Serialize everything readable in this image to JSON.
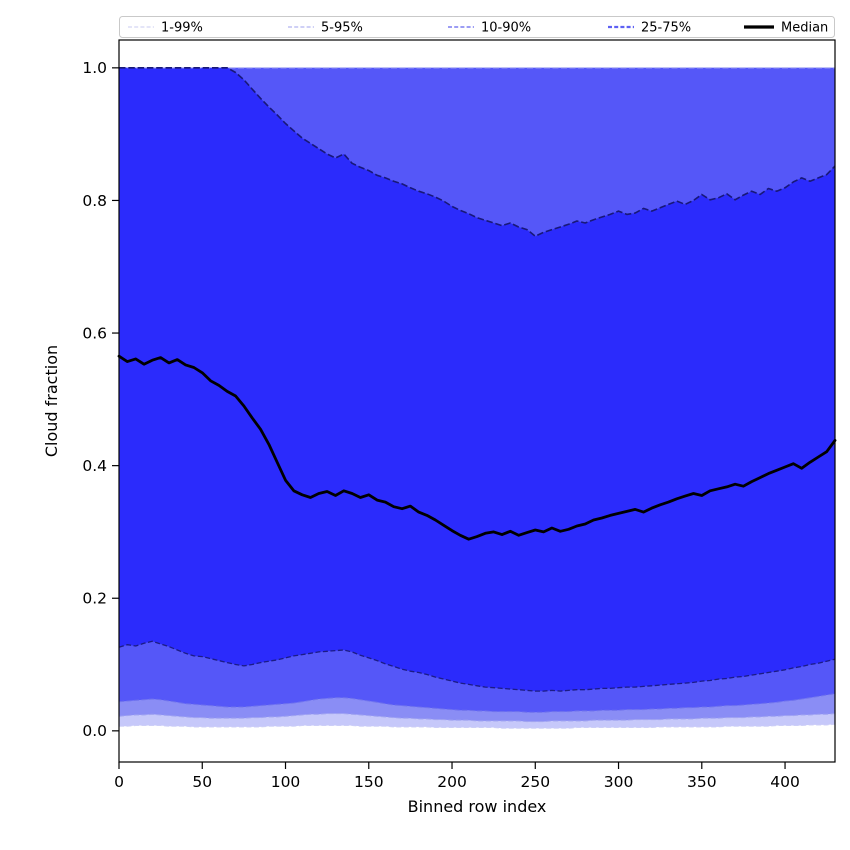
{
  "chart_data": {
    "type": "area",
    "title": "",
    "xlabel": "Binned row index",
    "ylabel": "Cloud fraction",
    "xlim": [
      0,
      430
    ],
    "ylim": [
      -0.047,
      1.042
    ],
    "x_ticks": [
      0,
      50,
      100,
      150,
      200,
      250,
      300,
      350,
      400
    ],
    "y_ticks": [
      0.0,
      0.2,
      0.4,
      0.6,
      0.8,
      1.0
    ],
    "y_tick_labels": [
      "0.0",
      "0.2",
      "0.4",
      "0.6",
      "0.8",
      "1.0"
    ],
    "grid": false,
    "x_start": 0,
    "x_step": 5,
    "top_edge_value": 1.0,
    "top_edge_color": "#a8abf2",
    "background_color": "#ffffff",
    "frame_color": "#000000",
    "legend": {
      "position": "top",
      "entries": [
        {
          "label": "1-99%",
          "color": "#c9cbf0",
          "lw": 1.1,
          "dashed": true
        },
        {
          "label": "5-95%",
          "color": "#9fa2ee",
          "lw": 1.1,
          "dashed": true
        },
        {
          "label": "10-90%",
          "color": "#7b7df0",
          "lw": 1.4,
          "dashed": true
        },
        {
          "label": "25-75%",
          "color": "#5e61f3",
          "lw": 2.2,
          "dashed": true
        },
        {
          "label": "Median",
          "color": "#000000",
          "lw": 3.2,
          "dashed": false
        }
      ]
    },
    "bands": [
      {
        "name": "1-99%",
        "fill": "#c6c8fa",
        "edge": "#caccf6",
        "upper": 1.0,
        "lower": [
          0.007,
          0.007,
          0.008,
          0.008,
          0.008,
          0.008,
          0.007,
          0.007,
          0.007,
          0.006,
          0.006,
          0.006,
          0.006,
          0.006,
          0.006,
          0.006,
          0.006,
          0.006,
          0.007,
          0.007,
          0.007,
          0.007,
          0.008,
          0.008,
          0.008,
          0.008,
          0.008,
          0.008,
          0.008,
          0.007,
          0.007,
          0.007,
          0.007,
          0.006,
          0.006,
          0.006,
          0.006,
          0.006,
          0.005,
          0.005,
          0.005,
          0.005,
          0.005,
          0.005,
          0.005,
          0.005,
          0.004,
          0.004,
          0.004,
          0.004,
          0.004,
          0.004,
          0.004,
          0.004,
          0.004,
          0.005,
          0.005,
          0.005,
          0.005,
          0.005,
          0.005,
          0.005,
          0.005,
          0.005,
          0.005,
          0.006,
          0.006,
          0.006,
          0.006,
          0.006,
          0.006,
          0.006,
          0.006,
          0.007,
          0.007,
          0.007,
          0.007,
          0.007,
          0.007,
          0.008,
          0.008,
          0.008,
          0.008,
          0.009,
          0.009,
          0.009,
          0.01
        ]
      },
      {
        "name": "5-95%",
        "fill": "#8a8df5",
        "edge": "#a0a3f0",
        "upper": 1.0,
        "lower": [
          0.022,
          0.023,
          0.024,
          0.024,
          0.025,
          0.024,
          0.023,
          0.022,
          0.021,
          0.02,
          0.02,
          0.019,
          0.019,
          0.019,
          0.019,
          0.019,
          0.02,
          0.02,
          0.021,
          0.021,
          0.022,
          0.023,
          0.024,
          0.025,
          0.025,
          0.026,
          0.026,
          0.026,
          0.025,
          0.024,
          0.023,
          0.022,
          0.021,
          0.02,
          0.019,
          0.019,
          0.018,
          0.018,
          0.017,
          0.017,
          0.016,
          0.016,
          0.016,
          0.015,
          0.015,
          0.015,
          0.015,
          0.015,
          0.015,
          0.014,
          0.014,
          0.014,
          0.015,
          0.015,
          0.015,
          0.015,
          0.015,
          0.016,
          0.016,
          0.016,
          0.016,
          0.016,
          0.017,
          0.017,
          0.017,
          0.017,
          0.018,
          0.018,
          0.018,
          0.018,
          0.019,
          0.019,
          0.019,
          0.02,
          0.02,
          0.02,
          0.021,
          0.021,
          0.022,
          0.022,
          0.023,
          0.023,
          0.024,
          0.024,
          0.025,
          0.025,
          0.026
        ]
      },
      {
        "name": "10-90%",
        "fill": "#5557f8",
        "edge": "#6f72ec",
        "upper": 1.0,
        "lower": [
          0.044,
          0.045,
          0.046,
          0.047,
          0.048,
          0.047,
          0.045,
          0.043,
          0.041,
          0.04,
          0.039,
          0.038,
          0.037,
          0.036,
          0.036,
          0.036,
          0.037,
          0.038,
          0.039,
          0.04,
          0.041,
          0.042,
          0.044,
          0.046,
          0.048,
          0.049,
          0.05,
          0.05,
          0.049,
          0.047,
          0.045,
          0.043,
          0.041,
          0.039,
          0.038,
          0.037,
          0.036,
          0.035,
          0.034,
          0.033,
          0.032,
          0.031,
          0.031,
          0.03,
          0.03,
          0.029,
          0.029,
          0.029,
          0.029,
          0.028,
          0.028,
          0.028,
          0.029,
          0.029,
          0.029,
          0.03,
          0.03,
          0.03,
          0.031,
          0.031,
          0.031,
          0.032,
          0.032,
          0.032,
          0.033,
          0.033,
          0.034,
          0.034,
          0.035,
          0.035,
          0.036,
          0.036,
          0.037,
          0.038,
          0.038,
          0.039,
          0.04,
          0.041,
          0.042,
          0.043,
          0.045,
          0.046,
          0.048,
          0.05,
          0.052,
          0.054,
          0.056
        ]
      },
      {
        "name": "25-75%",
        "fill": "#2b2bfc",
        "edge": "#181878",
        "upper": [
          1.0,
          1.0,
          1.0,
          1.0,
          1.0,
          1.0,
          1.0,
          1.0,
          1.0,
          1.0,
          1.0,
          1.0,
          1.0,
          1.0,
          0.993,
          0.982,
          0.968,
          0.954,
          0.941,
          0.929,
          0.916,
          0.905,
          0.894,
          0.886,
          0.878,
          0.87,
          0.864,
          0.87,
          0.856,
          0.85,
          0.845,
          0.838,
          0.834,
          0.829,
          0.825,
          0.819,
          0.814,
          0.81,
          0.805,
          0.799,
          0.791,
          0.785,
          0.78,
          0.774,
          0.77,
          0.766,
          0.762,
          0.766,
          0.76,
          0.756,
          0.746,
          0.752,
          0.756,
          0.76,
          0.764,
          0.769,
          0.766,
          0.771,
          0.775,
          0.779,
          0.784,
          0.779,
          0.781,
          0.788,
          0.784,
          0.789,
          0.794,
          0.799,
          0.794,
          0.8,
          0.809,
          0.801,
          0.804,
          0.81,
          0.801,
          0.808,
          0.814,
          0.809,
          0.818,
          0.814,
          0.819,
          0.828,
          0.834,
          0.829,
          0.834,
          0.839,
          0.852
        ],
        "lower": [
          0.126,
          0.13,
          0.128,
          0.132,
          0.135,
          0.131,
          0.127,
          0.122,
          0.117,
          0.113,
          0.112,
          0.109,
          0.106,
          0.103,
          0.1,
          0.098,
          0.1,
          0.103,
          0.105,
          0.107,
          0.11,
          0.113,
          0.115,
          0.117,
          0.119,
          0.12,
          0.121,
          0.122,
          0.119,
          0.114,
          0.11,
          0.106,
          0.101,
          0.097,
          0.093,
          0.09,
          0.088,
          0.085,
          0.081,
          0.078,
          0.075,
          0.072,
          0.07,
          0.068,
          0.066,
          0.065,
          0.064,
          0.063,
          0.062,
          0.061,
          0.06,
          0.06,
          0.061,
          0.06,
          0.061,
          0.062,
          0.062,
          0.063,
          0.064,
          0.064,
          0.065,
          0.066,
          0.066,
          0.067,
          0.068,
          0.069,
          0.07,
          0.071,
          0.072,
          0.073,
          0.075,
          0.076,
          0.078,
          0.079,
          0.081,
          0.082,
          0.084,
          0.086,
          0.088,
          0.09,
          0.092,
          0.095,
          0.097,
          0.1,
          0.102,
          0.105,
          0.108
        ]
      }
    ],
    "median": {
      "label": "Median",
      "color": "#000000",
      "values": [
        0.565,
        0.557,
        0.561,
        0.553,
        0.559,
        0.563,
        0.555,
        0.56,
        0.552,
        0.548,
        0.54,
        0.528,
        0.521,
        0.512,
        0.505,
        0.49,
        0.472,
        0.455,
        0.432,
        0.405,
        0.378,
        0.362,
        0.356,
        0.352,
        0.358,
        0.361,
        0.355,
        0.362,
        0.358,
        0.352,
        0.356,
        0.348,
        0.345,
        0.338,
        0.335,
        0.339,
        0.33,
        0.325,
        0.318,
        0.31,
        0.302,
        0.295,
        0.289,
        0.293,
        0.298,
        0.3,
        0.296,
        0.301,
        0.295,
        0.299,
        0.303,
        0.3,
        0.306,
        0.301,
        0.304,
        0.309,
        0.312,
        0.318,
        0.321,
        0.325,
        0.328,
        0.331,
        0.334,
        0.33,
        0.336,
        0.341,
        0.345,
        0.35,
        0.354,
        0.358,
        0.355,
        0.362,
        0.365,
        0.368,
        0.372,
        0.369,
        0.376,
        0.382,
        0.388,
        0.393,
        0.398,
        0.403,
        0.396,
        0.405,
        0.413,
        0.421,
        0.438
      ]
    }
  }
}
